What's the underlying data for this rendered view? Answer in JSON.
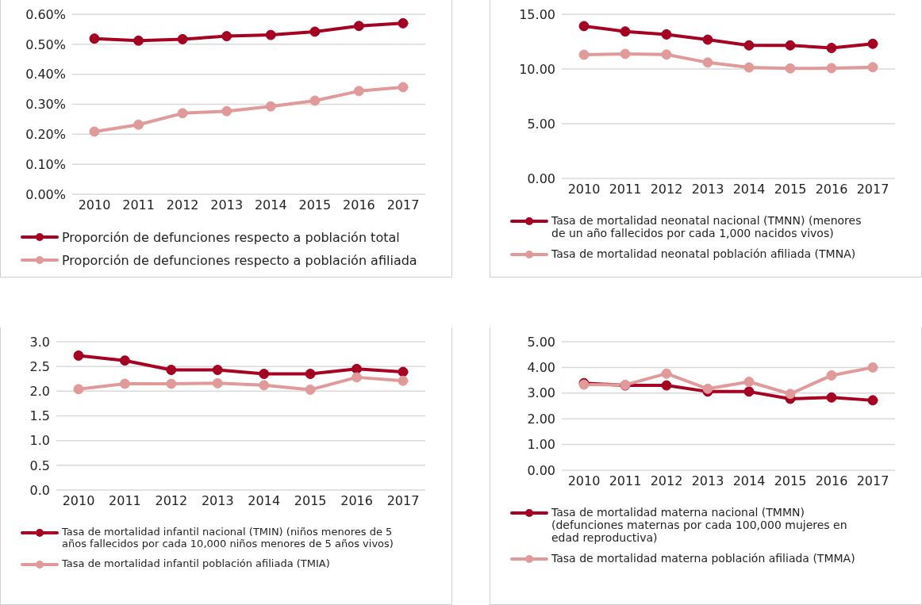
{
  "chart_data": [
    {
      "type": "line",
      "categories": [
        "2010",
        "2011",
        "2012",
        "2013",
        "2014",
        "2015",
        "2016",
        "2017"
      ],
      "ylim": [
        0,
        0.6
      ],
      "yticks": [
        {
          "value": 0,
          "label": "0.00%"
        },
        {
          "value": 0.1,
          "label": "0.10%"
        },
        {
          "value": 0.2,
          "label": "0.20%"
        },
        {
          "value": 0.3,
          "label": "0.30%"
        },
        {
          "value": 0.4,
          "label": "0.40%"
        },
        {
          "value": 0.5,
          "label": "0.50%"
        },
        {
          "value": 0.6,
          "label": "0.60%"
        }
      ],
      "grid": "y",
      "legend": "bottom",
      "marker": "circle",
      "line_style": "solid",
      "series": [
        {
          "name": "Proporción de defunciones respecto a población total",
          "color": "#a50021",
          "values": [
            0.519,
            0.512,
            0.517,
            0.527,
            0.531,
            0.542,
            0.561,
            0.57
          ]
        },
        {
          "name": "Proporción de defunciones respecto a población afiliada",
          "color": "#e09a9a",
          "values": [
            0.209,
            0.232,
            0.27,
            0.277,
            0.293,
            0.312,
            0.344,
            0.357
          ]
        }
      ]
    },
    {
      "type": "line",
      "categories": [
        "2010",
        "2011",
        "2012",
        "2013",
        "2014",
        "2015",
        "2016",
        "2017"
      ],
      "ylim": [
        0,
        15
      ],
      "yticks": [
        {
          "value": 0,
          "label": "0.00"
        },
        {
          "value": 5,
          "label": "5.00"
        },
        {
          "value": 10,
          "label": "10.00"
        },
        {
          "value": 15,
          "label": "15.00"
        }
      ],
      "grid": "y",
      "legend": "bottom",
      "marker": "circle",
      "line_style": "solid",
      "series": [
        {
          "name": "Tasa de mortalidad neonatal nacional (TMNN) (menores de un año fallecidos por cada 1,000 nacidos vivos)",
          "color": "#a50021",
          "values": [
            13.92,
            13.43,
            13.16,
            12.68,
            12.16,
            12.16,
            11.92,
            12.3
          ]
        },
        {
          "name": "Tasa de mortalidad neonatal población afiliada (TMNA)",
          "color": "#e09a9a",
          "values": [
            11.3,
            11.38,
            11.32,
            10.59,
            10.14,
            10.05,
            10.08,
            10.16
          ]
        }
      ]
    },
    {
      "type": "line",
      "categories": [
        "2010",
        "2011",
        "2012",
        "2013",
        "2014",
        "2015",
        "2016",
        "2017"
      ],
      "ylim": [
        0,
        3
      ],
      "yticks": [
        {
          "value": 0,
          "label": "0.0"
        },
        {
          "value": 0.5,
          "label": "0.5"
        },
        {
          "value": 1,
          "label": "1.0"
        },
        {
          "value": 1.5,
          "label": "1.5"
        },
        {
          "value": 2,
          "label": "2.0"
        },
        {
          "value": 2.5,
          "label": "2.5"
        },
        {
          "value": 3,
          "label": "3.0"
        }
      ],
      "grid": "y",
      "legend": "bottom",
      "marker": "circle",
      "line_style": "solid",
      "series": [
        {
          "name": "Tasa de mortalidad infantil nacional (TMIN) (niños menores de 5 años fallecidos por cada 10,000 niños menores de 5 años vivos)",
          "color": "#a50021",
          "values": [
            2.72,
            2.62,
            2.43,
            2.43,
            2.35,
            2.35,
            2.45,
            2.39
          ]
        },
        {
          "name": "Tasa de mortalidad infantil población afiliada (TMIA)",
          "color": "#e09a9a",
          "values": [
            2.04,
            2.15,
            2.15,
            2.16,
            2.12,
            2.03,
            2.28,
            2.21
          ]
        }
      ]
    },
    {
      "type": "line",
      "categories": [
        "2010",
        "2011",
        "2012",
        "2013",
        "2014",
        "2015",
        "2016",
        "2017"
      ],
      "ylim": [
        0,
        5
      ],
      "yticks": [
        {
          "value": 0,
          "label": "0.00"
        },
        {
          "value": 1,
          "label": "1.00"
        },
        {
          "value": 2,
          "label": "2.00"
        },
        {
          "value": 3,
          "label": "3.00"
        },
        {
          "value": 4,
          "label": "4.00"
        },
        {
          "value": 5,
          "label": "5.00"
        }
      ],
      "grid": "y",
      "legend": "bottom",
      "marker": "circle",
      "line_style": "solid",
      "series": [
        {
          "name": "Tasa de mortalidad materna nacional (TMMN) (defunciones maternas por cada 100,000 mujeres en edad reproductiva)",
          "color": "#a50021",
          "values": [
            3.39,
            3.3,
            3.3,
            3.06,
            3.06,
            2.78,
            2.83,
            2.72
          ]
        },
        {
          "name": "Tasa de mortalidad materna población afiliada (TMMA)",
          "color": "#e09a9a",
          "values": [
            3.33,
            3.32,
            3.76,
            3.17,
            3.44,
            2.97,
            3.69,
            4.0
          ]
        }
      ]
    }
  ]
}
